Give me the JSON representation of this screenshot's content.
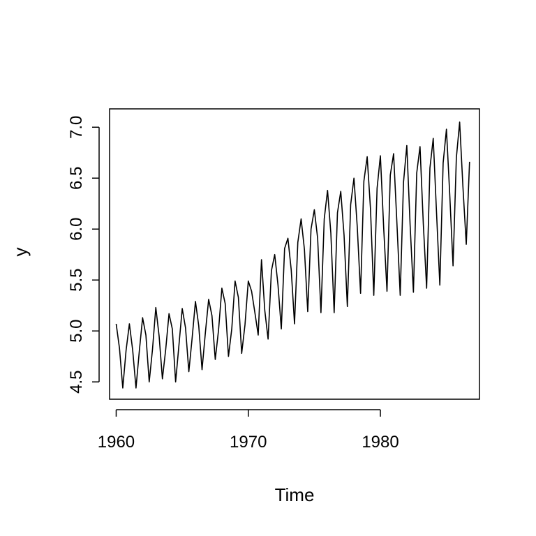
{
  "chart_data": {
    "type": "line",
    "xlabel": "Time",
    "ylabel": "y",
    "xlim": [
      1959.5,
      1987.5
    ],
    "ylim": [
      4.33,
      7.18
    ],
    "x_ticks": [
      1960,
      1970,
      1980
    ],
    "y_ticks": [
      4.5,
      5.0,
      5.5,
      6.0,
      6.5,
      7.0
    ],
    "x_tick_labels": [
      "1960",
      "1970",
      "1980"
    ],
    "y_tick_labels": [
      "4.5",
      "5.0",
      "5.5",
      "6.0",
      "6.5",
      "7.0"
    ],
    "series": [
      {
        "frequency": 4,
        "start": 1960.0,
        "values": [
          5.07,
          4.83,
          4.44,
          4.81,
          5.07,
          4.81,
          4.44,
          4.8,
          5.13,
          4.96,
          4.5,
          4.82,
          5.23,
          4.95,
          4.53,
          4.82,
          5.17,
          5.02,
          4.5,
          4.86,
          5.22,
          5.03,
          4.6,
          4.93,
          5.29,
          5.05,
          4.62,
          4.98,
          5.31,
          5.15,
          4.72,
          5.01,
          5.42,
          5.27,
          4.75,
          5.02,
          5.49,
          5.33,
          4.78,
          5.06,
          5.49,
          5.39,
          5.18,
          4.96,
          5.7,
          5.2,
          4.92,
          5.59,
          5.75,
          5.45,
          5.02,
          5.81,
          5.91,
          5.6,
          5.07,
          5.87,
          6.1,
          5.8,
          5.19,
          6.0,
          6.19,
          5.91,
          5.18,
          6.1,
          6.38,
          5.96,
          5.18,
          6.16,
          6.37,
          5.94,
          5.24,
          6.24,
          6.5,
          6.02,
          5.37,
          6.47,
          6.71,
          6.2,
          5.35,
          6.4,
          6.72,
          6.01,
          5.39,
          6.53,
          6.74,
          6.06,
          5.35,
          6.46,
          6.82,
          6.04,
          5.38,
          6.55,
          6.81,
          6.05,
          5.42,
          6.6,
          6.89,
          6.16,
          5.45,
          6.65,
          6.98,
          6.34,
          5.64,
          6.7,
          7.05,
          6.41,
          5.85,
          6.66
        ]
      }
    ]
  }
}
